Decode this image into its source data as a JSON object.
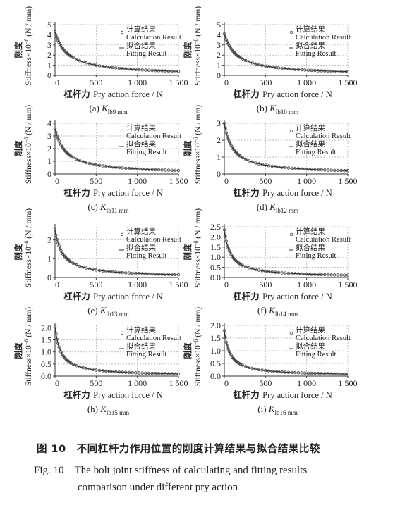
{
  "figure": {
    "caption_cn": "图 10　不同杠杆力作用位置的刚度计算结果与拟合结果比较",
    "caption_en_line1": "Fig. 10　The bolt joint stiffness of calculating and fitting results",
    "caption_en_line2": "comparison under different pry action"
  },
  "common": {
    "legend": {
      "calc_cn": "计算结果",
      "calc_en": "Calculation Result",
      "fit_cn": "拟合结果",
      "fit_en": "Fitting Result"
    },
    "ylabel_cn": "刚度",
    "ylabel_en": "Stiffness×10",
    "ylabel_exp": "−6",
    "ylabel_unit": "(N / mm)",
    "xlabel": "杠杆力 Pry action force / N",
    "xticks": [
      0,
      500,
      1000,
      1500
    ],
    "xtick_labels": [
      "0",
      "500",
      "1 000",
      "1 500"
    ]
  },
  "chart_data": [
    {
      "type": "line",
      "panel_label": "(a)",
      "sub": "lb9 mm",
      "ylim": [
        0,
        5
      ],
      "yticks": [
        0,
        1,
        2,
        3,
        4,
        5
      ],
      "series": [
        {
          "name": "计算结果 Calculation Result",
          "x": [
            0,
            50,
            100,
            200,
            300,
            500,
            700,
            1000,
            1500
          ],
          "y": [
            4.3,
            3.2,
            2.6,
            1.85,
            1.45,
            1.0,
            0.75,
            0.52,
            0.3
          ]
        },
        {
          "name": "拟合结果 Fitting Result",
          "x": [
            0,
            50,
            100,
            200,
            300,
            500,
            700,
            1000,
            1500
          ],
          "y": [
            4.3,
            3.2,
            2.6,
            1.85,
            1.45,
            1.0,
            0.75,
            0.52,
            0.3
          ]
        }
      ]
    },
    {
      "type": "line",
      "panel_label": "(b)",
      "sub": "lb10 mm",
      "ylim": [
        0,
        5
      ],
      "yticks": [
        0,
        1,
        2,
        3,
        4,
        5
      ],
      "series": [
        {
          "name": "计算结果 Calculation Result",
          "x": [
            0,
            50,
            100,
            200,
            300,
            500,
            700,
            1000,
            1500
          ],
          "y": [
            4.1,
            3.05,
            2.45,
            1.75,
            1.35,
            0.92,
            0.68,
            0.47,
            0.27
          ]
        },
        {
          "name": "拟合结果 Fitting Result",
          "x": [
            0,
            50,
            100,
            200,
            300,
            500,
            700,
            1000,
            1500
          ],
          "y": [
            4.1,
            3.05,
            2.45,
            1.75,
            1.35,
            0.92,
            0.68,
            0.47,
            0.27
          ]
        }
      ]
    },
    {
      "type": "line",
      "panel_label": "(c)",
      "sub": "lb11 mm",
      "ylim": [
        0,
        4
      ],
      "yticks": [
        0,
        1,
        2,
        3,
        4
      ],
      "series": [
        {
          "name": "计算结果 Calculation Result",
          "x": [
            0,
            50,
            100,
            200,
            300,
            500,
            700,
            1000,
            1500
          ],
          "y": [
            3.6,
            2.65,
            2.1,
            1.45,
            1.1,
            0.72,
            0.52,
            0.35,
            0.2
          ]
        },
        {
          "name": "拟合结果 Fitting Result",
          "x": [
            0,
            50,
            100,
            200,
            300,
            500,
            700,
            1000,
            1500
          ],
          "y": [
            3.6,
            2.65,
            2.1,
            1.45,
            1.1,
            0.72,
            0.52,
            0.35,
            0.2
          ]
        }
      ]
    },
    {
      "type": "line",
      "panel_label": "(d)",
      "sub": "lb12 mm",
      "ylim": [
        0,
        3
      ],
      "yticks": [
        0,
        1,
        2,
        3
      ],
      "series": [
        {
          "name": "计算结果 Calculation Result",
          "x": [
            0,
            50,
            100,
            200,
            300,
            500,
            700,
            1000,
            1500
          ],
          "y": [
            3.0,
            2.15,
            1.65,
            1.1,
            0.82,
            0.52,
            0.37,
            0.25,
            0.14
          ]
        },
        {
          "name": "拟合结果 Fitting Result",
          "x": [
            0,
            50,
            100,
            200,
            300,
            500,
            700,
            1000,
            1500
          ],
          "y": [
            3.0,
            2.15,
            1.65,
            1.1,
            0.82,
            0.52,
            0.37,
            0.25,
            0.14
          ]
        }
      ]
    },
    {
      "type": "line",
      "panel_label": "(e)",
      "sub": "lb13 mm",
      "ylim": [
        0,
        2.7
      ],
      "yticks": [
        0,
        1,
        2
      ],
      "series": [
        {
          "name": "计算结果 Calculation Result",
          "x": [
            0,
            50,
            100,
            200,
            300,
            500,
            700,
            1000,
            1500
          ],
          "y": [
            2.55,
            1.75,
            1.3,
            0.85,
            0.62,
            0.4,
            0.28,
            0.19,
            0.11
          ]
        },
        {
          "name": "拟合结果 Fitting Result",
          "x": [
            0,
            50,
            100,
            200,
            300,
            500,
            700,
            1000,
            1500
          ],
          "y": [
            2.55,
            1.75,
            1.3,
            0.85,
            0.62,
            0.4,
            0.28,
            0.19,
            0.11
          ]
        }
      ]
    },
    {
      "type": "line",
      "panel_label": "(f)",
      "sub": "lb14 mm",
      "ylim": [
        0,
        2.5
      ],
      "yticks": [
        0,
        0.5,
        1.0,
        1.5,
        2.0,
        2.5
      ],
      "series": [
        {
          "name": "计算结果 Calculation Result",
          "x": [
            0,
            50,
            100,
            200,
            300,
            500,
            700,
            1000,
            1500
          ],
          "y": [
            2.35,
            1.55,
            1.12,
            0.7,
            0.5,
            0.31,
            0.22,
            0.15,
            0.09
          ]
        },
        {
          "name": "拟合结果 Fitting Result",
          "x": [
            0,
            50,
            100,
            200,
            300,
            500,
            700,
            1000,
            1500
          ],
          "y": [
            2.35,
            1.55,
            1.12,
            0.7,
            0.5,
            0.31,
            0.22,
            0.15,
            0.09
          ]
        }
      ]
    },
    {
      "type": "line",
      "panel_label": "(h)",
      "sub": "lb15 mm",
      "ylim": [
        0,
        2.1
      ],
      "yticks": [
        0,
        0.5,
        1.0,
        1.5,
        2.0
      ],
      "series": [
        {
          "name": "计算结果 Calculation Result",
          "x": [
            0,
            50,
            100,
            200,
            300,
            500,
            700,
            1000,
            1500
          ],
          "y": [
            2.05,
            1.3,
            0.92,
            0.57,
            0.4,
            0.25,
            0.18,
            0.12,
            0.07
          ]
        },
        {
          "name": "拟合结果 Fitting Result",
          "x": [
            0,
            50,
            100,
            200,
            300,
            500,
            700,
            1000,
            1500
          ],
          "y": [
            2.05,
            1.3,
            0.92,
            0.57,
            0.4,
            0.25,
            0.18,
            0.12,
            0.07
          ]
        }
      ]
    },
    {
      "type": "line",
      "panel_label": "(i)",
      "sub": "lb16 mm",
      "ylim": [
        0,
        2.0
      ],
      "yticks": [
        0,
        0.5,
        1.0,
        1.5,
        2.0
      ],
      "series": [
        {
          "name": "计算结果 Calculation Result",
          "x": [
            0,
            50,
            100,
            200,
            300,
            500,
            700,
            1000,
            1500
          ],
          "y": [
            1.8,
            1.15,
            0.8,
            0.5,
            0.35,
            0.22,
            0.16,
            0.11,
            0.06
          ]
        },
        {
          "name": "拟合结果 Fitting Result",
          "x": [
            0,
            50,
            100,
            200,
            300,
            500,
            700,
            1000,
            1500
          ],
          "y": [
            1.8,
            1.15,
            0.8,
            0.5,
            0.35,
            0.22,
            0.16,
            0.11,
            0.06
          ]
        }
      ]
    }
  ]
}
